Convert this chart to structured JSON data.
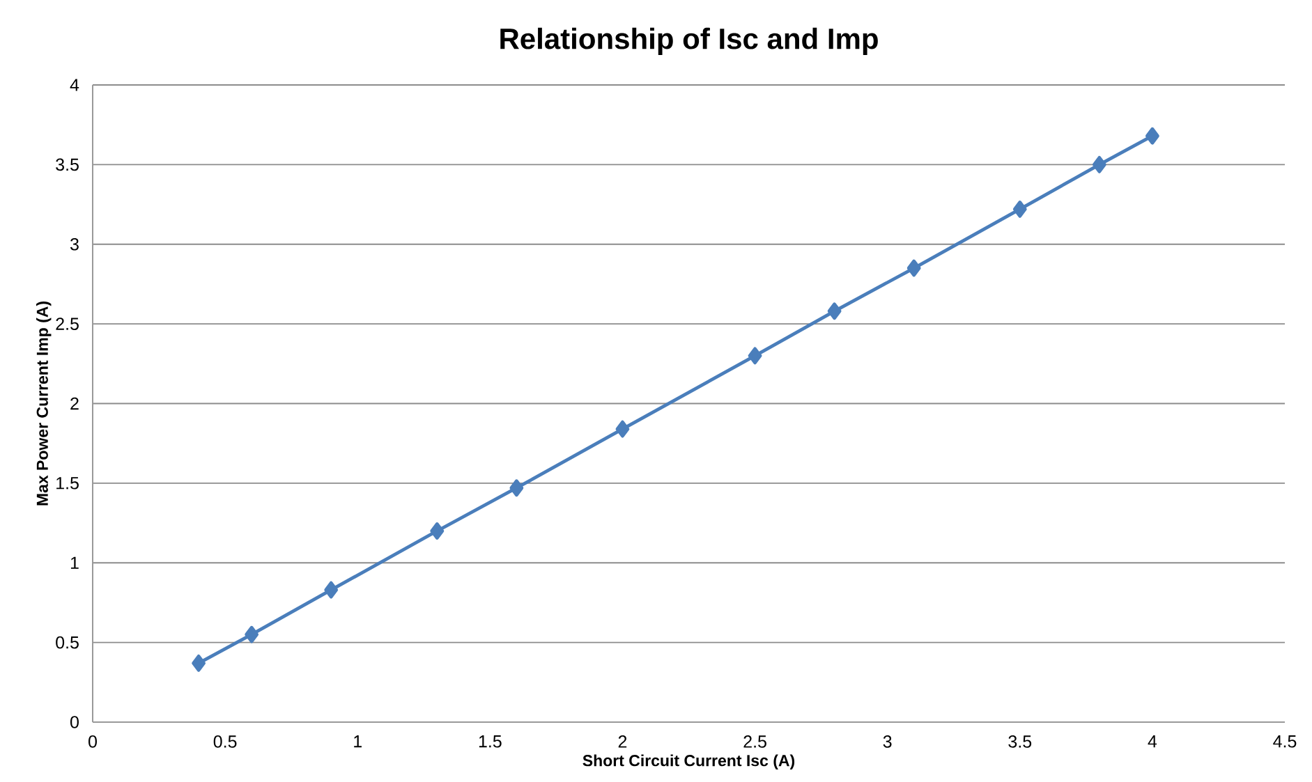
{
  "chart_data": {
    "type": "line",
    "title": "Relationship of Isc and Imp",
    "xlabel": "Short Circuit Current Isc (A)",
    "ylabel": "Max Power Current Imp (A)",
    "x": [
      0.4,
      0.6,
      0.9,
      1.3,
      1.6,
      2.0,
      2.5,
      2.8,
      3.1,
      3.5,
      3.8,
      4.0
    ],
    "series": [
      {
        "color": "#4a7ebb",
        "values": [
          0.37,
          0.55,
          0.83,
          1.2,
          1.47,
          1.84,
          2.3,
          2.58,
          2.85,
          3.22,
          3.5,
          3.68
        ]
      }
    ],
    "xlim": [
      0,
      4.5
    ],
    "xticks": [
      0,
      0.5,
      1,
      1.5,
      2,
      2.5,
      3,
      3.5,
      4,
      4.5
    ],
    "ylim": [
      0,
      4
    ],
    "yticks": [
      0,
      0.5,
      1,
      1.5,
      2,
      2.5,
      3,
      3.5,
      4
    ],
    "grid": "y",
    "marker": "diamond",
    "line_style": "solid"
  }
}
